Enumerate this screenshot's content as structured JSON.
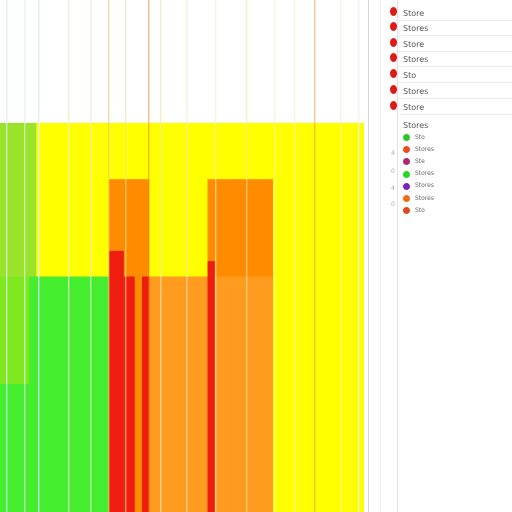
{
  "chart_data": {
    "type": "bar",
    "title": "",
    "xlabel": "",
    "ylabel": "",
    "x_range": [
      0,
      100
    ],
    "ylim": [
      0,
      100
    ],
    "grid": false,
    "legend_position": "right",
    "series": [
      {
        "color": "#ffff00",
        "values": [
          [
            10,
            30,
            76
          ],
          [
            30,
            100,
            76
          ]
        ]
      },
      {
        "color": "#9be22a",
        "values": [
          [
            0,
            10,
            76
          ]
        ]
      },
      {
        "color": "#80e81e",
        "values": [
          [
            0,
            10,
            46
          ]
        ]
      },
      {
        "color": "#44ee2e",
        "values": [
          [
            0,
            8,
            25
          ],
          [
            8,
            30,
            46
          ]
        ]
      },
      {
        "color": "#ff8c00",
        "values": [
          [
            30,
            41,
            65
          ],
          [
            57,
            75,
            65
          ]
        ]
      },
      {
        "color": "#ff9b1e",
        "values": [
          [
            39,
            57,
            46
          ],
          [
            57,
            75,
            46
          ]
        ]
      },
      {
        "color": "#ee1d10",
        "values": [
          [
            30,
            34,
            51
          ],
          [
            34,
            37,
            46
          ],
          [
            39,
            41,
            46
          ],
          [
            57,
            59,
            49
          ]
        ]
      }
    ]
  },
  "sidebar": {
    "items": [
      {
        "label": "Store"
      },
      {
        "label": "Stores"
      },
      {
        "label": "Store"
      },
      {
        "label": "Stores"
      },
      {
        "label": "Sto"
      },
      {
        "label": "Stores"
      },
      {
        "label": "Store"
      }
    ]
  },
  "legend": {
    "title": "Stores",
    "ticks": [
      "4",
      "0",
      "4",
      "0",
      "4"
    ],
    "entries": [
      {
        "label": "Sto",
        "color": "#28c828"
      },
      {
        "label": "Stores",
        "color": "#f04a1e"
      },
      {
        "label": "Ste",
        "color": "#b0266e"
      },
      {
        "label": "Stores",
        "color": "#22d822"
      },
      {
        "label": "Stores",
        "color": "#7a22c0"
      },
      {
        "label": "Stores",
        "color": "#f06c10"
      },
      {
        "label": "Sto",
        "color": "#e04a1e"
      }
    ]
  }
}
